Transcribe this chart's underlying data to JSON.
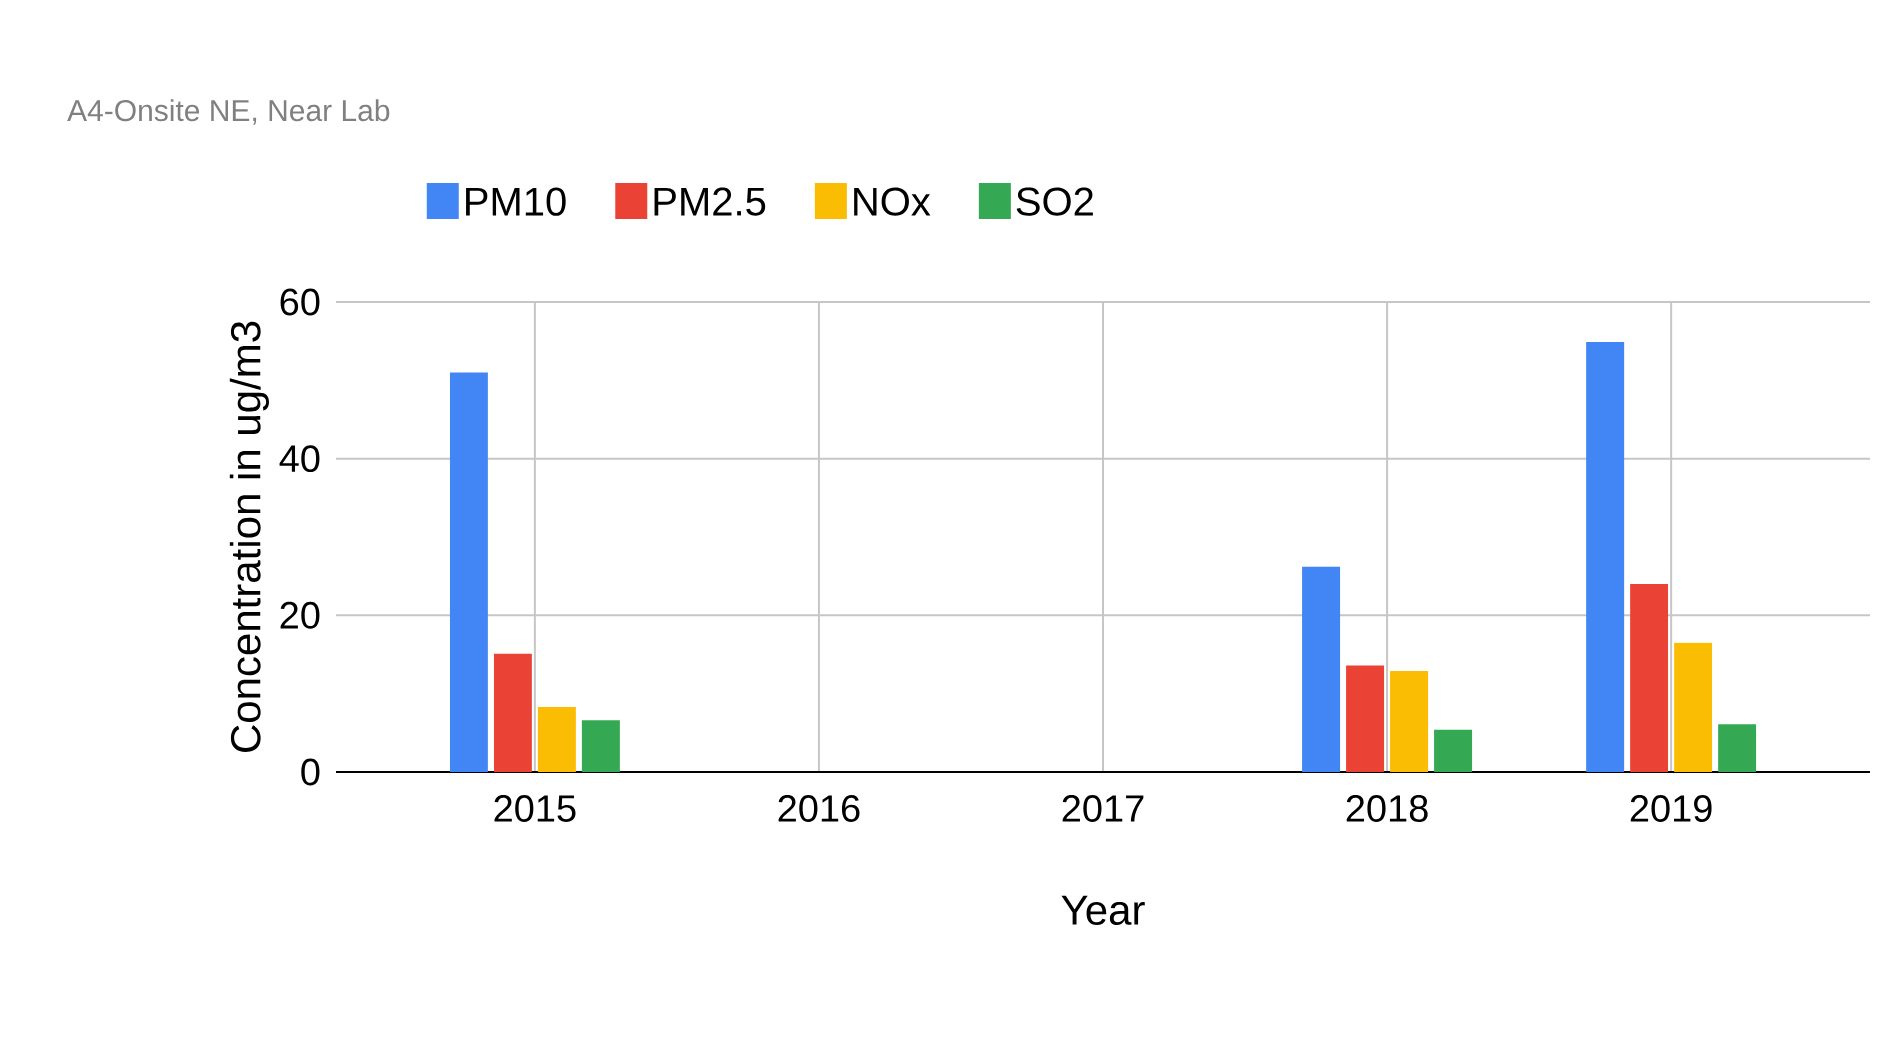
{
  "chart_data": {
    "type": "bar",
    "title": "A4-Onsite NE, Near Lab",
    "xlabel": "Year",
    "ylabel": "Concentration in ug/m3",
    "categories": [
      "2015",
      "2016",
      "2017",
      "2018",
      "2019"
    ],
    "series": [
      {
        "name": "PM10",
        "color": "#4285f4",
        "values": [
          51,
          null,
          null,
          26.2,
          54.9
        ]
      },
      {
        "name": "PM2.5",
        "color": "#ea4335",
        "values": [
          15.1,
          null,
          null,
          13.6,
          24.0
        ]
      },
      {
        "name": "NOx",
        "color": "#fbbc04",
        "values": [
          8.3,
          null,
          null,
          12.9,
          16.5
        ]
      },
      {
        "name": "SO2",
        "color": "#34a853",
        "values": [
          6.6,
          null,
          null,
          5.4,
          6.1
        ]
      }
    ],
    "ylim": [
      0,
      60
    ],
    "yticks": [
      0,
      20,
      40,
      60
    ],
    "grid": true,
    "legend": "top"
  }
}
